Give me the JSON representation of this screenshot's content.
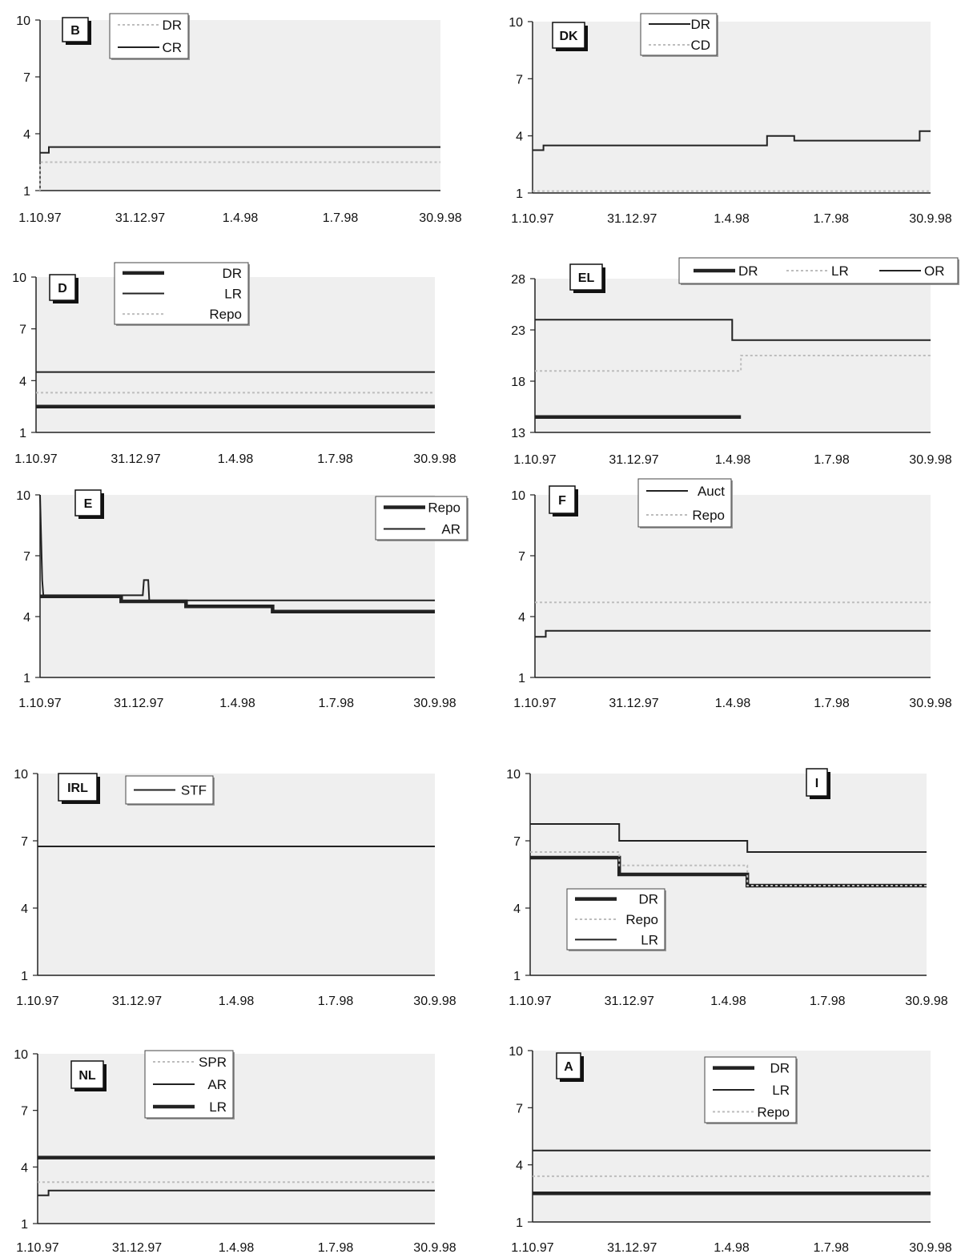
{
  "x_ticks": [
    "1.10.97",
    "31.12.97",
    "1.4.98",
    "1.7.98",
    "30.9.98"
  ],
  "colors": {
    "background": "#efefef",
    "line": "#222222",
    "dotted": "#bdbdbd"
  },
  "chart_data": [
    {
      "type": "line",
      "panel": "B",
      "ylim": [
        1,
        10
      ],
      "yticks": [
        "1",
        "4",
        "7",
        "10"
      ],
      "legend": [
        "DR",
        "CR"
      ],
      "legend_placement": "top-left",
      "series": [
        {
          "name": "DR",
          "style": "dotted",
          "points": [
            [
              0,
              1
            ],
            [
              0,
              2.5
            ],
            [
              365,
              2.5
            ]
          ]
        },
        {
          "name": "CR",
          "style": "thin",
          "points": [
            [
              0,
              3.0
            ],
            [
              8,
              3.0
            ],
            [
              8,
              3.3
            ],
            [
              365,
              3.3
            ]
          ]
        }
      ]
    },
    {
      "type": "line",
      "panel": "DK",
      "ylim": [
        1,
        10
      ],
      "yticks": [
        "1",
        "4",
        "7",
        "10"
      ],
      "legend": [
        "DR",
        "CD"
      ],
      "legend_placement": "top-center",
      "series": [
        {
          "name": "DR",
          "style": "thin",
          "points": [
            [
              0,
              3.25
            ],
            [
              10,
              3.25
            ],
            [
              10,
              3.5
            ],
            [
              215,
              3.5
            ],
            [
              215,
              4.0
            ],
            [
              240,
              4.0
            ],
            [
              240,
              3.75
            ],
            [
              355,
              3.75
            ],
            [
              355,
              4.25
            ],
            [
              365,
              4.25
            ]
          ]
        },
        {
          "name": "CD",
          "style": "dotted",
          "points": [
            [
              0,
              1.1
            ],
            [
              365,
              1.1
            ]
          ]
        }
      ]
    },
    {
      "type": "line",
      "panel": "D",
      "ylim": [
        1,
        10
      ],
      "yticks": [
        "1",
        "4",
        "7",
        "10"
      ],
      "legend": [
        "DR",
        "LR",
        "Repo"
      ],
      "legend_placement": "top-left",
      "series": [
        {
          "name": "DR",
          "style": "thick",
          "points": [
            [
              0,
              2.5
            ],
            [
              365,
              2.5
            ]
          ]
        },
        {
          "name": "LR",
          "style": "thin",
          "points": [
            [
              0,
              4.5
            ],
            [
              365,
              4.5
            ]
          ]
        },
        {
          "name": "Repo",
          "style": "dotted",
          "points": [
            [
              0,
              3.3
            ],
            [
              365,
              3.3
            ]
          ]
        }
      ]
    },
    {
      "type": "line",
      "panel": "EL",
      "ylim": [
        13,
        28
      ],
      "yticks": [
        "13",
        "18",
        "23",
        "28"
      ],
      "legend": [
        "DR",
        "LR",
        "OR"
      ],
      "legend_placement": "top-right",
      "series": [
        {
          "name": "DR",
          "style": "thick",
          "points": [
            [
              0,
              14.5
            ],
            [
              190,
              14.5
            ]
          ]
        },
        {
          "name": "LR",
          "style": "dotted",
          "points": [
            [
              0,
              19.0
            ],
            [
              190,
              19.0
            ],
            [
              190,
              20.5
            ],
            [
              365,
              20.5
            ]
          ]
        },
        {
          "name": "OR",
          "style": "thin",
          "points": [
            [
              0,
              24.0
            ],
            [
              182,
              24.0
            ],
            [
              182,
              22.0
            ],
            [
              365,
              22.0
            ]
          ]
        }
      ]
    },
    {
      "type": "line",
      "panel": "E",
      "ylim": [
        1,
        10
      ],
      "yticks": [
        "1",
        "4",
        "7",
        "10"
      ],
      "legend": [
        "Repo",
        "AR"
      ],
      "legend_placement": "top-right",
      "series": [
        {
          "name": "Repo",
          "style": "thick",
          "points": [
            [
              0,
              5.0
            ],
            [
              75,
              5.0
            ],
            [
              75,
              4.75
            ],
            [
              135,
              4.75
            ],
            [
              135,
              4.5
            ],
            [
              215,
              4.5
            ],
            [
              215,
              4.25
            ],
            [
              365,
              4.25
            ]
          ]
        },
        {
          "name": "AR",
          "style": "thin",
          "points": [
            [
              0,
              10
            ],
            [
              2,
              5.8
            ],
            [
              3,
              5.05
            ],
            [
              95,
              5.05
            ],
            [
              96,
              5.8
            ],
            [
              100,
              5.8
            ],
            [
              101,
              4.8
            ],
            [
              365,
              4.8
            ]
          ]
        }
      ]
    },
    {
      "type": "line",
      "panel": "F",
      "ylim": [
        1,
        10
      ],
      "yticks": [
        "1",
        "4",
        "7",
        "10"
      ],
      "legend": [
        "Auct",
        "Repo"
      ],
      "legend_placement": "top-center",
      "series": [
        {
          "name": "Auct",
          "style": "thin",
          "points": [
            [
              0,
              3.0
            ],
            [
              10,
              3.0
            ],
            [
              10,
              3.3
            ],
            [
              365,
              3.3
            ]
          ]
        },
        {
          "name": "Repo",
          "style": "dotted",
          "points": [
            [
              0,
              4.7
            ],
            [
              365,
              4.7
            ]
          ]
        }
      ]
    },
    {
      "type": "line",
      "panel": "IRL",
      "ylim": [
        1,
        10
      ],
      "yticks": [
        "1",
        "4",
        "7",
        "10"
      ],
      "legend": [
        "STF"
      ],
      "legend_placement": "top-left",
      "series": [
        {
          "name": "STF",
          "style": "thin",
          "points": [
            [
              0,
              6.75
            ],
            [
              365,
              6.75
            ]
          ]
        }
      ]
    },
    {
      "type": "line",
      "panel": "I",
      "ylim": [
        1,
        10
      ],
      "yticks": [
        "1",
        "4",
        "7",
        "10"
      ],
      "legend": [
        "DR",
        "Repo",
        "LR"
      ],
      "legend_placement": "bottom-left",
      "series": [
        {
          "name": "DR",
          "style": "thick",
          "points": [
            [
              0,
              6.25
            ],
            [
              82,
              6.25
            ],
            [
              82,
              5.5
            ],
            [
              200,
              5.5
            ],
            [
              200,
              5.0
            ],
            [
              365,
              5.0
            ]
          ]
        },
        {
          "name": "Repo",
          "style": "dotted",
          "points": [
            [
              0,
              6.5
            ],
            [
              82,
              6.5
            ],
            [
              82,
              5.9
            ],
            [
              200,
              5.9
            ],
            [
              200,
              5.0
            ],
            [
              365,
              5.0
            ]
          ]
        },
        {
          "name": "LR",
          "style": "thin",
          "points": [
            [
              0,
              7.75
            ],
            [
              82,
              7.75
            ],
            [
              82,
              7.0
            ],
            [
              200,
              7.0
            ],
            [
              200,
              6.5
            ],
            [
              365,
              6.5
            ]
          ]
        }
      ]
    },
    {
      "type": "line",
      "panel": "NL",
      "ylim": [
        1,
        10
      ],
      "yticks": [
        "1",
        "4",
        "7",
        "10"
      ],
      "legend": [
        "SPR",
        "AR",
        "LR"
      ],
      "legend_placement": "top-center",
      "series": [
        {
          "name": "SPR",
          "style": "dotted",
          "points": [
            [
              0,
              3.2
            ],
            [
              365,
              3.2
            ]
          ]
        },
        {
          "name": "AR",
          "style": "thin",
          "points": [
            [
              0,
              2.5
            ],
            [
              10,
              2.5
            ],
            [
              10,
              2.75
            ],
            [
              365,
              2.75
            ]
          ]
        },
        {
          "name": "LR",
          "style": "thick",
          "points": [
            [
              0,
              4.5
            ],
            [
              365,
              4.5
            ]
          ]
        }
      ]
    },
    {
      "type": "line",
      "panel": "A",
      "ylim": [
        1,
        10
      ],
      "yticks": [
        "1",
        "4",
        "7",
        "10"
      ],
      "legend": [
        "DR",
        "LR",
        "Repo"
      ],
      "legend_placement": "top-center",
      "series": [
        {
          "name": "DR",
          "style": "thick",
          "points": [
            [
              0,
              2.5
            ],
            [
              365,
              2.5
            ]
          ]
        },
        {
          "name": "LR",
          "style": "thin",
          "points": [
            [
              0,
              4.75
            ],
            [
              365,
              4.75
            ]
          ]
        },
        {
          "name": "Repo",
          "style": "dotted",
          "points": [
            [
              0,
              3.4
            ],
            [
              365,
              3.4
            ]
          ]
        }
      ]
    }
  ]
}
